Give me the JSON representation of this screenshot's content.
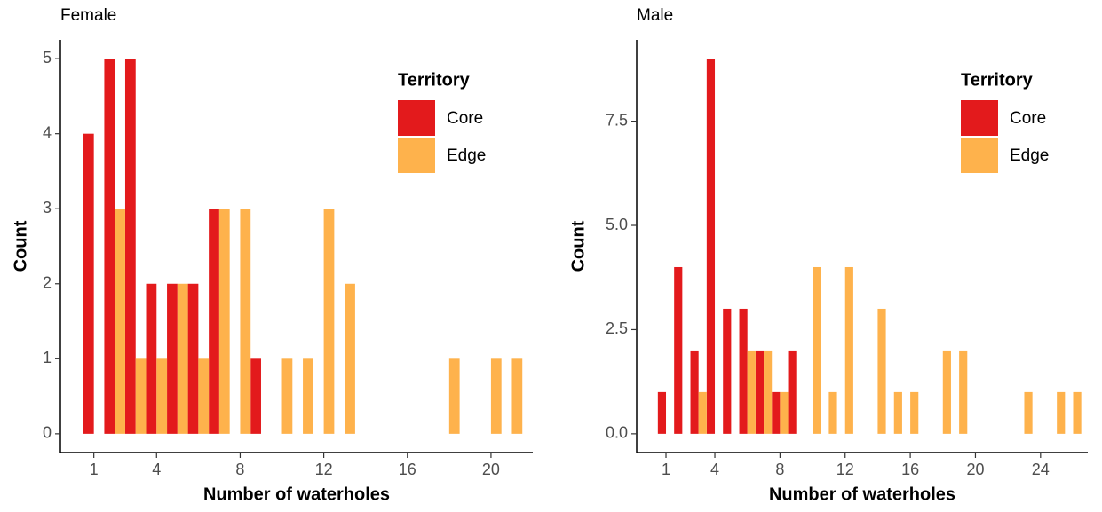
{
  "chart_data": [
    {
      "type": "bar",
      "title": "Female",
      "x_label": "Number of waterholes",
      "y_label": "Count",
      "legend_title": "Territory",
      "x": [
        1,
        2,
        3,
        4,
        5,
        6,
        7,
        8,
        9,
        10,
        11,
        12,
        13,
        14,
        15,
        16,
        17,
        18,
        19,
        20,
        21
      ],
      "series": [
        {
          "name": "Core",
          "color": "#e31a1c",
          "values": [
            4,
            5,
            5,
            2,
            2,
            2,
            3,
            0,
            1,
            0,
            0,
            0,
            0,
            0,
            0,
            0,
            0,
            0,
            0,
            0,
            0
          ]
        },
        {
          "name": "Edge",
          "color": "#feb24c",
          "values": [
            0,
            3,
            1,
            1,
            2,
            1,
            3,
            3,
            0,
            1,
            1,
            3,
            2,
            0,
            0,
            0,
            0,
            1,
            0,
            1,
            1
          ]
        }
      ],
      "xlim": [
        -0.6,
        22
      ],
      "ylim": [
        -0.25,
        5.25
      ],
      "xticks": [
        1,
        4,
        8,
        12,
        16,
        20
      ],
      "yticks": [
        0,
        1,
        2,
        3,
        4,
        5
      ]
    },
    {
      "type": "bar",
      "title": "Male",
      "x_label": "Number of waterholes",
      "y_label": "Count",
      "legend_title": "Territory",
      "x": [
        1,
        2,
        3,
        4,
        5,
        6,
        7,
        8,
        9,
        10,
        11,
        12,
        13,
        14,
        15,
        16,
        17,
        18,
        19,
        20,
        21,
        22,
        23,
        24,
        25,
        26
      ],
      "series": [
        {
          "name": "Core",
          "color": "#e31a1c",
          "values": [
            1,
            4,
            2,
            9,
            3,
            3,
            2,
            1,
            2,
            0,
            0,
            0,
            0,
            0,
            0,
            0,
            0,
            0,
            0,
            0,
            0,
            0,
            0,
            0,
            0,
            0
          ]
        },
        {
          "name": "Edge",
          "color": "#feb24c",
          "values": [
            0,
            0,
            1,
            0,
            0,
            2,
            2,
            1,
            0,
            4,
            1,
            4,
            0,
            3,
            1,
            1,
            0,
            2,
            2,
            0,
            0,
            0,
            1,
            0,
            1,
            1
          ]
        }
      ],
      "xlim": [
        -0.8,
        26.9
      ],
      "ylim": [
        -0.45,
        9.45
      ],
      "xticks": [
        1,
        4,
        8,
        12,
        16,
        20,
        24
      ],
      "yticks": [
        {
          "value": 0,
          "label": "0.0"
        },
        2.5,
        {
          "value": 5,
          "label": "5.0"
        },
        7.5
      ]
    }
  ]
}
